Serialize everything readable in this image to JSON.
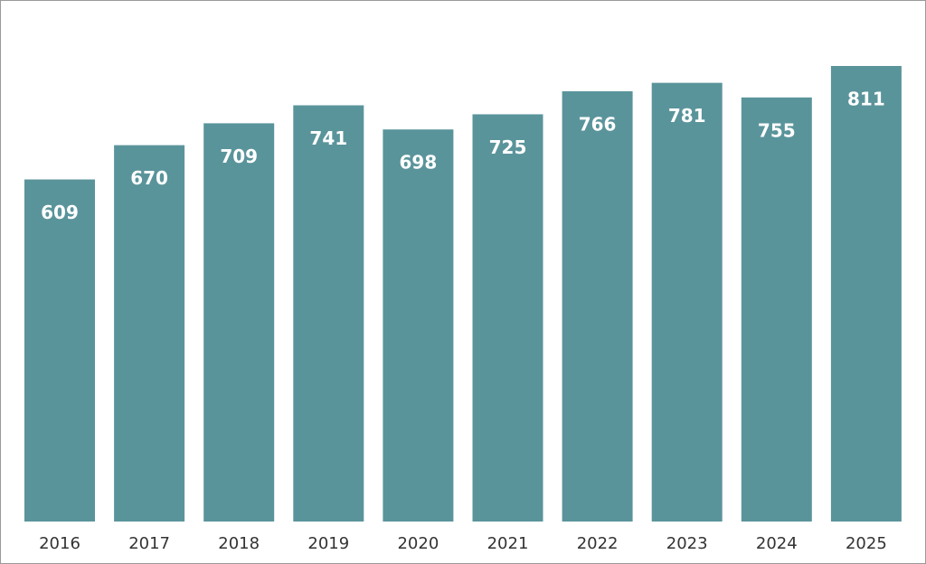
{
  "chart_data": {
    "type": "bar",
    "categories": [
      "2016",
      "2017",
      "2018",
      "2019",
      "2020",
      "2021",
      "2022",
      "2023",
      "2024",
      "2025"
    ],
    "values": [
      609,
      670,
      709,
      741,
      698,
      725,
      766,
      781,
      755,
      811
    ],
    "color": "#5a949b"
  }
}
